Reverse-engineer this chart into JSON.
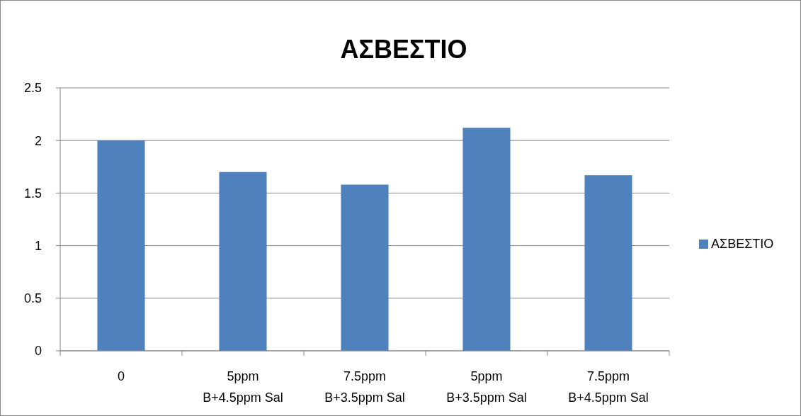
{
  "chart_data": {
    "type": "bar",
    "title": "ΑΣΒΕΣΤΙΟ",
    "categories": [
      "0",
      "5ppm\nB+4.5ppm Sal",
      "7.5ppm\nB+3.5ppm Sal",
      "5ppm\nB+3.5ppm Sal",
      "7.5ppm\nB+4.5ppm Sal"
    ],
    "series": [
      {
        "name": "ΑΣΒΕΣΤΙΟ",
        "color": "#4f81bd",
        "values": [
          2.0,
          1.7,
          1.58,
          2.12,
          1.67
        ]
      }
    ],
    "ylim": [
      0,
      2.5
    ],
    "yticks": [
      {
        "value": 0,
        "label": "0"
      },
      {
        "value": 0.5,
        "label": "0.5"
      },
      {
        "value": 1,
        "label": "1"
      },
      {
        "value": 1.5,
        "label": "1.5"
      },
      {
        "value": 2,
        "label": "2"
      },
      {
        "value": 2.5,
        "label": "2.5"
      }
    ],
    "grid": "y",
    "legend": "right"
  }
}
